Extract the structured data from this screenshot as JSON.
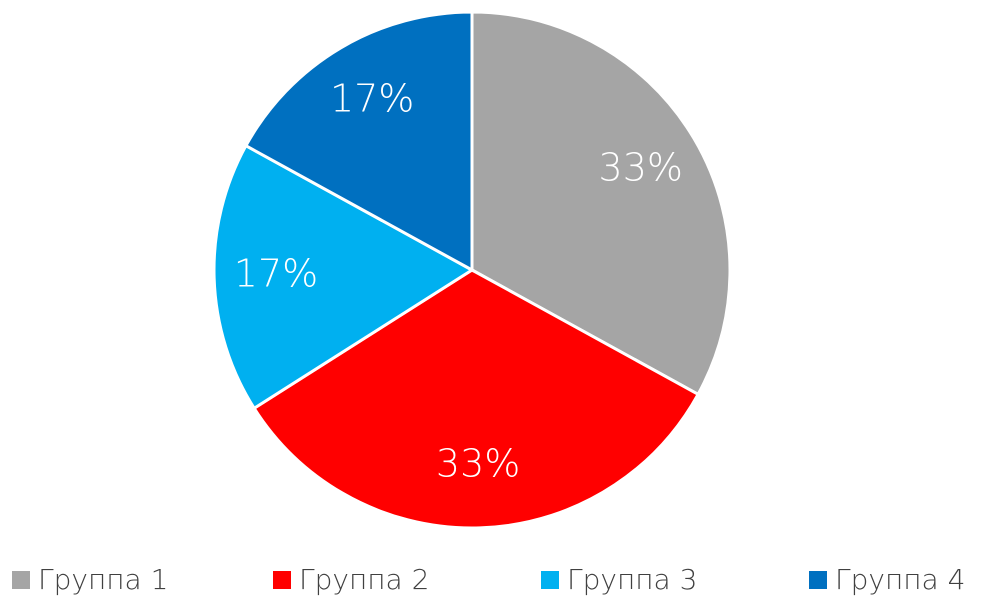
{
  "chart_data": {
    "type": "pie",
    "categories": [
      "Группа 1",
      "Группа 2",
      "Группа 3",
      "Группа 4"
    ],
    "values": [
      33,
      33,
      17,
      17
    ],
    "value_labels": [
      "33%",
      "33%",
      "17%",
      "17%"
    ],
    "colors": [
      "#a5a5a5",
      "#ff0000",
      "#00b0f0",
      "#0070c0"
    ],
    "legend": "bottom"
  }
}
